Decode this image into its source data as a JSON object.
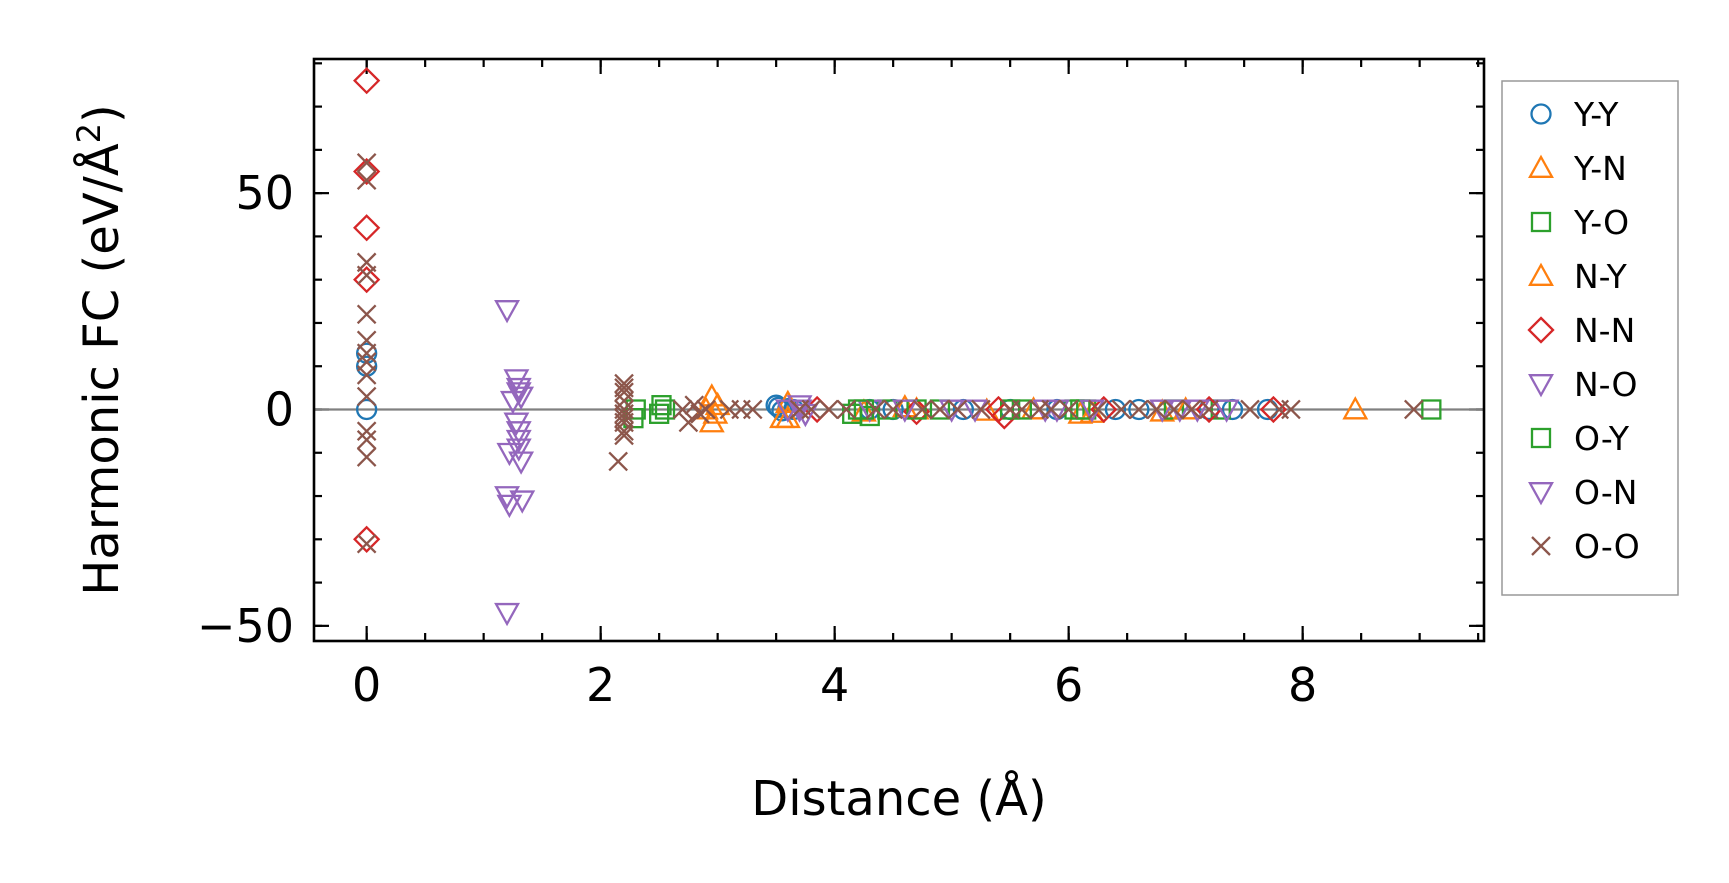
{
  "chart_data": {
    "type": "scatter",
    "xlabel": "Distance (Å)",
    "ylabel_main": "Harmonic FC (eV/Å",
    "ylabel_sup": "2",
    "ylabel_close": ")",
    "xlim": [
      -0.45,
      9.55
    ],
    "ylim": [
      -53.5,
      81
    ],
    "xticks": [
      0,
      2,
      4,
      6,
      8
    ],
    "xtick_labels": [
      "0",
      "2",
      "4",
      "6",
      "8"
    ],
    "yticks": [
      -50,
      0,
      50
    ],
    "ytick_labels": [
      "−50",
      "0",
      "50"
    ],
    "x_minor_step": 0.5,
    "y_minor_step": 10,
    "zero_line": true,
    "legend_position": "outside-right",
    "series": [
      {
        "name": "Y-Y",
        "marker": "circle",
        "color": "#1f77b4",
        "points": [
          [
            0,
            0
          ],
          [
            0,
            13
          ],
          [
            0,
            10
          ],
          [
            3.5,
            1
          ],
          [
            3.52,
            0.5
          ],
          [
            3.55,
            -0.3
          ],
          [
            3.6,
            0.2
          ],
          [
            3.65,
            0
          ],
          [
            4.3,
            0
          ],
          [
            4.5,
            0
          ],
          [
            5.1,
            0
          ],
          [
            5.5,
            0
          ],
          [
            5.9,
            0
          ],
          [
            6.4,
            0
          ],
          [
            6.6,
            0
          ],
          [
            7.2,
            0
          ],
          [
            7.4,
            0
          ],
          [
            7.7,
            0
          ]
        ]
      },
      {
        "name": "Y-N",
        "marker": "triangle-up",
        "color": "#ff7f0e",
        "points": [
          [
            2.95,
            3
          ],
          [
            2.95,
            -3
          ],
          [
            2.98,
            -1
          ],
          [
            3.0,
            1
          ],
          [
            3.55,
            -2
          ],
          [
            3.6,
            1.5
          ],
          [
            4.25,
            -0.5
          ],
          [
            4.6,
            0.5
          ],
          [
            5.3,
            -0.3
          ],
          [
            6.1,
            -1
          ],
          [
            6.8,
            -0.5
          ],
          [
            8.45,
            0
          ]
        ]
      },
      {
        "name": "Y-O",
        "marker": "square",
        "color": "#2ca02c",
        "points": [
          [
            2.28,
            -2
          ],
          [
            2.3,
            0
          ],
          [
            2.5,
            -1
          ],
          [
            2.52,
            1
          ],
          [
            4.15,
            -1
          ],
          [
            4.2,
            0
          ],
          [
            4.3,
            -1.5
          ],
          [
            4.45,
            0
          ],
          [
            4.9,
            0
          ],
          [
            5.5,
            0
          ],
          [
            6.05,
            0
          ],
          [
            6.15,
            0
          ],
          [
            6.9,
            0
          ],
          [
            7.3,
            0
          ],
          [
            9.1,
            0
          ]
        ]
      },
      {
        "name": "N-Y",
        "marker": "triangle-up",
        "color": "#ff7f0e",
        "points": [
          [
            2.9,
            0
          ],
          [
            3.6,
            -2
          ],
          [
            4.7,
            0
          ],
          [
            5.7,
            0
          ],
          [
            6.2,
            -0.8
          ],
          [
            7.0,
            0
          ]
        ]
      },
      {
        "name": "N-N",
        "marker": "diamond",
        "color": "#d62728",
        "points": [
          [
            0,
            76
          ],
          [
            0,
            55
          ],
          [
            0,
            42
          ],
          [
            0,
            30
          ],
          [
            0,
            -30
          ],
          [
            3.85,
            0
          ],
          [
            4.7,
            -0.5
          ],
          [
            5.4,
            0
          ],
          [
            5.45,
            -1.5
          ],
          [
            6.3,
            0
          ],
          [
            7.2,
            0
          ],
          [
            7.75,
            0
          ]
        ]
      },
      {
        "name": "N-O",
        "marker": "triangle-down",
        "color": "#9467bd",
        "points": [
          [
            1.2,
            23
          ],
          [
            1.22,
            -10
          ],
          [
            1.2,
            -20
          ],
          [
            1.22,
            -22
          ],
          [
            1.2,
            -47
          ],
          [
            1.28,
            7
          ],
          [
            1.3,
            5
          ],
          [
            1.3,
            4
          ],
          [
            1.32,
            3
          ],
          [
            1.28,
            -3
          ],
          [
            1.3,
            -5
          ],
          [
            1.3,
            -9
          ],
          [
            1.32,
            -12
          ],
          [
            1.33,
            -21
          ],
          [
            3.6,
            0
          ],
          [
            3.7,
            1
          ],
          [
            3.75,
            -1
          ],
          [
            4.3,
            0
          ],
          [
            5.0,
            0
          ],
          [
            5.9,
            0
          ],
          [
            6.8,
            0
          ],
          [
            7.1,
            0
          ]
        ]
      },
      {
        "name": "O-Y",
        "marker": "square",
        "color": "#2ca02c",
        "points": [
          [
            2.55,
            0
          ],
          [
            4.25,
            0
          ],
          [
            4.7,
            0
          ],
          [
            5.6,
            0
          ],
          [
            6.1,
            0
          ]
        ]
      },
      {
        "name": "O-N",
        "marker": "triangle-down",
        "color": "#9467bd",
        "points": [
          [
            1.25,
            2
          ],
          [
            1.3,
            -7
          ],
          [
            3.7,
            0
          ],
          [
            4.6,
            0
          ],
          [
            5.2,
            0
          ],
          [
            5.8,
            0
          ],
          [
            6.2,
            0
          ],
          [
            6.95,
            0
          ],
          [
            7.35,
            0
          ]
        ]
      },
      {
        "name": "O-O",
        "marker": "x",
        "color": "#8c564b",
        "points": [
          [
            0,
            57
          ],
          [
            0,
            53
          ],
          [
            0,
            34
          ],
          [
            0,
            31
          ],
          [
            0,
            22
          ],
          [
            0,
            16
          ],
          [
            0,
            13
          ],
          [
            0,
            11
          ],
          [
            0,
            8
          ],
          [
            0,
            3
          ],
          [
            0,
            -5
          ],
          [
            0,
            -7
          ],
          [
            0,
            -11
          ],
          [
            0,
            -31
          ],
          [
            2.15,
            -12
          ],
          [
            2.2,
            6
          ],
          [
            2.2,
            5
          ],
          [
            2.2,
            4
          ],
          [
            2.2,
            2
          ],
          [
            2.2,
            0
          ],
          [
            2.2,
            -1
          ],
          [
            2.2,
            -2
          ],
          [
            2.2,
            -3
          ],
          [
            2.2,
            -5
          ],
          [
            2.2,
            -6
          ],
          [
            2.7,
            0
          ],
          [
            2.75,
            -3
          ],
          [
            2.8,
            1
          ],
          [
            2.85,
            -1
          ],
          [
            2.9,
            0
          ],
          [
            3.1,
            0
          ],
          [
            3.2,
            0
          ],
          [
            3.3,
            0
          ],
          [
            3.7,
            0
          ],
          [
            3.8,
            0
          ],
          [
            3.95,
            0
          ],
          [
            4.1,
            0
          ],
          [
            4.35,
            0
          ],
          [
            4.5,
            0
          ],
          [
            4.75,
            0
          ],
          [
            4.9,
            0
          ],
          [
            5.05,
            0
          ],
          [
            5.25,
            0
          ],
          [
            5.5,
            0
          ],
          [
            5.6,
            0
          ],
          [
            5.75,
            0
          ],
          [
            5.85,
            0
          ],
          [
            6.0,
            0
          ],
          [
            6.25,
            0
          ],
          [
            6.45,
            0
          ],
          [
            6.6,
            0
          ],
          [
            6.75,
            0
          ],
          [
            6.9,
            0
          ],
          [
            7.05,
            0
          ],
          [
            7.2,
            0
          ],
          [
            7.55,
            0
          ],
          [
            7.8,
            0
          ],
          [
            7.9,
            0
          ],
          [
            8.95,
            0
          ]
        ]
      }
    ]
  }
}
